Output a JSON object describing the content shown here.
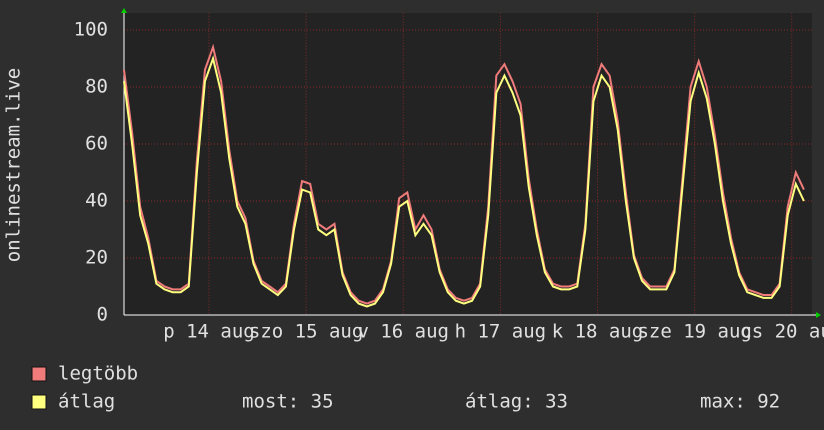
{
  "chart_data": {
    "type": "line",
    "y_label": "onlinestream.live",
    "x": [
      0,
      2,
      4,
      6,
      8,
      10,
      12,
      14,
      16,
      18,
      20,
      22,
      24,
      26,
      28,
      30,
      32,
      34,
      36,
      38,
      40,
      42,
      44,
      46,
      48,
      50,
      52,
      54,
      56,
      58,
      60,
      62,
      64,
      66,
      68,
      70,
      72,
      74,
      76,
      78,
      80,
      82,
      84,
      86,
      88,
      90,
      92,
      94,
      96,
      98,
      100,
      102,
      104,
      106,
      108,
      110,
      112,
      114,
      116,
      118,
      120,
      122,
      124,
      126,
      128,
      130,
      132,
      134,
      136,
      138,
      140,
      142,
      144,
      146,
      148,
      150,
      152,
      154,
      156,
      158,
      160,
      162,
      164,
      166,
      168
    ],
    "xlim": [
      0,
      170
    ],
    "xticks": [
      {
        "value": 21,
        "label": "p 14 aug"
      },
      {
        "value": 45,
        "label": "szo 15 aug"
      },
      {
        "value": 69,
        "label": "v 16 aug"
      },
      {
        "value": 93,
        "label": "h 17 aug"
      },
      {
        "value": 117,
        "label": "k 18 aug"
      },
      {
        "value": 141,
        "label": "sze 19 aug"
      },
      {
        "value": 165,
        "label": "cs 20 aug"
      }
    ],
    "ylim": [
      0,
      105
    ],
    "yticks": [
      0,
      20,
      40,
      60,
      80,
      100
    ],
    "grid": true,
    "series": [
      {
        "name": "legtöbb",
        "color": "#f07b7b",
        "values": [
          86,
          64,
          38,
          27,
          12,
          10,
          9,
          9,
          11,
          54,
          86,
          94,
          82,
          58,
          40,
          34,
          19,
          12,
          10,
          8,
          11,
          32,
          47,
          46,
          32,
          30,
          32,
          15,
          8,
          5,
          4,
          5,
          9,
          19,
          41,
          43,
          30,
          35,
          30,
          16,
          9,
          6,
          5,
          6,
          11,
          38,
          84,
          88,
          82,
          74,
          48,
          30,
          16,
          11,
          10,
          10,
          11,
          32,
          80,
          88,
          84,
          68,
          43,
          21,
          13,
          10,
          10,
          10,
          16,
          48,
          80,
          89,
          80,
          63,
          43,
          27,
          15,
          9,
          8,
          7,
          7,
          11,
          38,
          50,
          44
        ]
      },
      {
        "name": "átlag",
        "color": "#ffff80",
        "values": [
          82,
          60,
          35,
          25,
          11,
          9,
          8,
          8,
          10,
          50,
          82,
          90,
          78,
          55,
          38,
          32,
          18,
          11,
          9,
          7,
          10,
          30,
          44,
          43,
          30,
          28,
          30,
          14,
          7,
          4,
          3,
          4,
          8,
          18,
          38,
          40,
          28,
          32,
          28,
          15,
          8,
          5,
          4,
          5,
          10,
          35,
          78,
          84,
          78,
          70,
          45,
          28,
          15,
          10,
          9,
          9,
          10,
          30,
          75,
          84,
          80,
          65,
          40,
          20,
          12,
          9,
          9,
          9,
          15,
          45,
          75,
          85,
          76,
          60,
          40,
          25,
          14,
          8,
          7,
          6,
          6,
          10,
          35,
          46,
          40
        ]
      }
    ],
    "stats": [
      "most: 35",
      "átlag: 33",
      "max: 92"
    ]
  }
}
